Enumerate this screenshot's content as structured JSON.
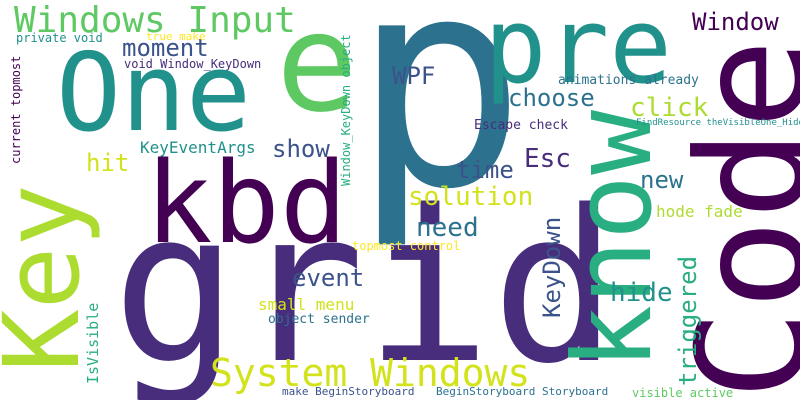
{
  "palette": {
    "dark_purple": "#440154",
    "indigo": "#472d7b",
    "blue": "#3b528b",
    "steel_blue": "#2c728e",
    "teal": "#21918c",
    "sea_green": "#28ae80",
    "green": "#5ec962",
    "lime": "#addc30",
    "yellow": "#fde725"
  },
  "words": [
    {
      "text": "p",
      "color": "#2c728e"
    },
    {
      "text": "grid",
      "color": "#472d7b"
    },
    {
      "text": "Code",
      "color": "#440154"
    },
    {
      "text": "One",
      "color": "#21918c"
    },
    {
      "text": "kbd",
      "color": "#440154"
    },
    {
      "text": "Key",
      "color": "#addc30"
    },
    {
      "text": "know",
      "color": "#28ae80"
    },
    {
      "text": "pre",
      "color": "#21918c"
    },
    {
      "text": "e",
      "color": "#5ec962"
    },
    {
      "text": "Windows Input",
      "color": "#5ec962"
    },
    {
      "text": "System Windows",
      "color": "#d2e21b"
    },
    {
      "text": "Window",
      "color": "#440154"
    },
    {
      "text": "moment",
      "color": "#3b528b"
    },
    {
      "text": "WPF",
      "color": "#3b528b"
    },
    {
      "text": "choose",
      "color": "#2c728e"
    },
    {
      "text": "click",
      "color": "#addc30"
    },
    {
      "text": "show",
      "color": "#3b528b"
    },
    {
      "text": "Esc",
      "color": "#472d7b"
    },
    {
      "text": "time",
      "color": "#3b528b"
    },
    {
      "text": "new",
      "color": "#2c728e"
    },
    {
      "text": "hit",
      "color": "#d2e21b"
    },
    {
      "text": "solution",
      "color": "#d2e21b"
    },
    {
      "text": "need",
      "color": "#2c728e"
    },
    {
      "text": "event",
      "color": "#3b528b"
    },
    {
      "text": "hide",
      "color": "#21918c"
    },
    {
      "text": "KeyDown",
      "color": "#3b528b"
    },
    {
      "text": "triggered",
      "color": "#28ae80"
    },
    {
      "text": "KeyEventArgs",
      "color": "#21918c"
    },
    {
      "text": "small menu",
      "color": "#d2e21b"
    },
    {
      "text": "object sender",
      "color": "#2c728e"
    },
    {
      "text": "hode fade",
      "color": "#addc30"
    },
    {
      "text": "animations already",
      "color": "#2c728e"
    },
    {
      "text": "Escape check",
      "color": "#472d7b"
    },
    {
      "text": "topmost control",
      "color": "#fde725"
    },
    {
      "text": "true make",
      "color": "#fde725"
    },
    {
      "text": "private void",
      "color": "#21918c"
    },
    {
      "text": "void Window_KeyDown",
      "color": "#472d7b"
    },
    {
      "text": "current topmost",
      "color": "#440154"
    },
    {
      "text": "Window_KeyDown object",
      "color": "#28ae80"
    },
    {
      "text": "FindResource theVisibleOne_Hide",
      "color": "#21918c"
    },
    {
      "text": "IsVisible",
      "color": "#28ae80"
    },
    {
      "text": "make BeginStoryboard",
      "color": "#3b528b"
    },
    {
      "text": "BeginStoryboard Storyboard",
      "color": "#2c728e"
    },
    {
      "text": "visible active",
      "color": "#5ec962"
    }
  ]
}
